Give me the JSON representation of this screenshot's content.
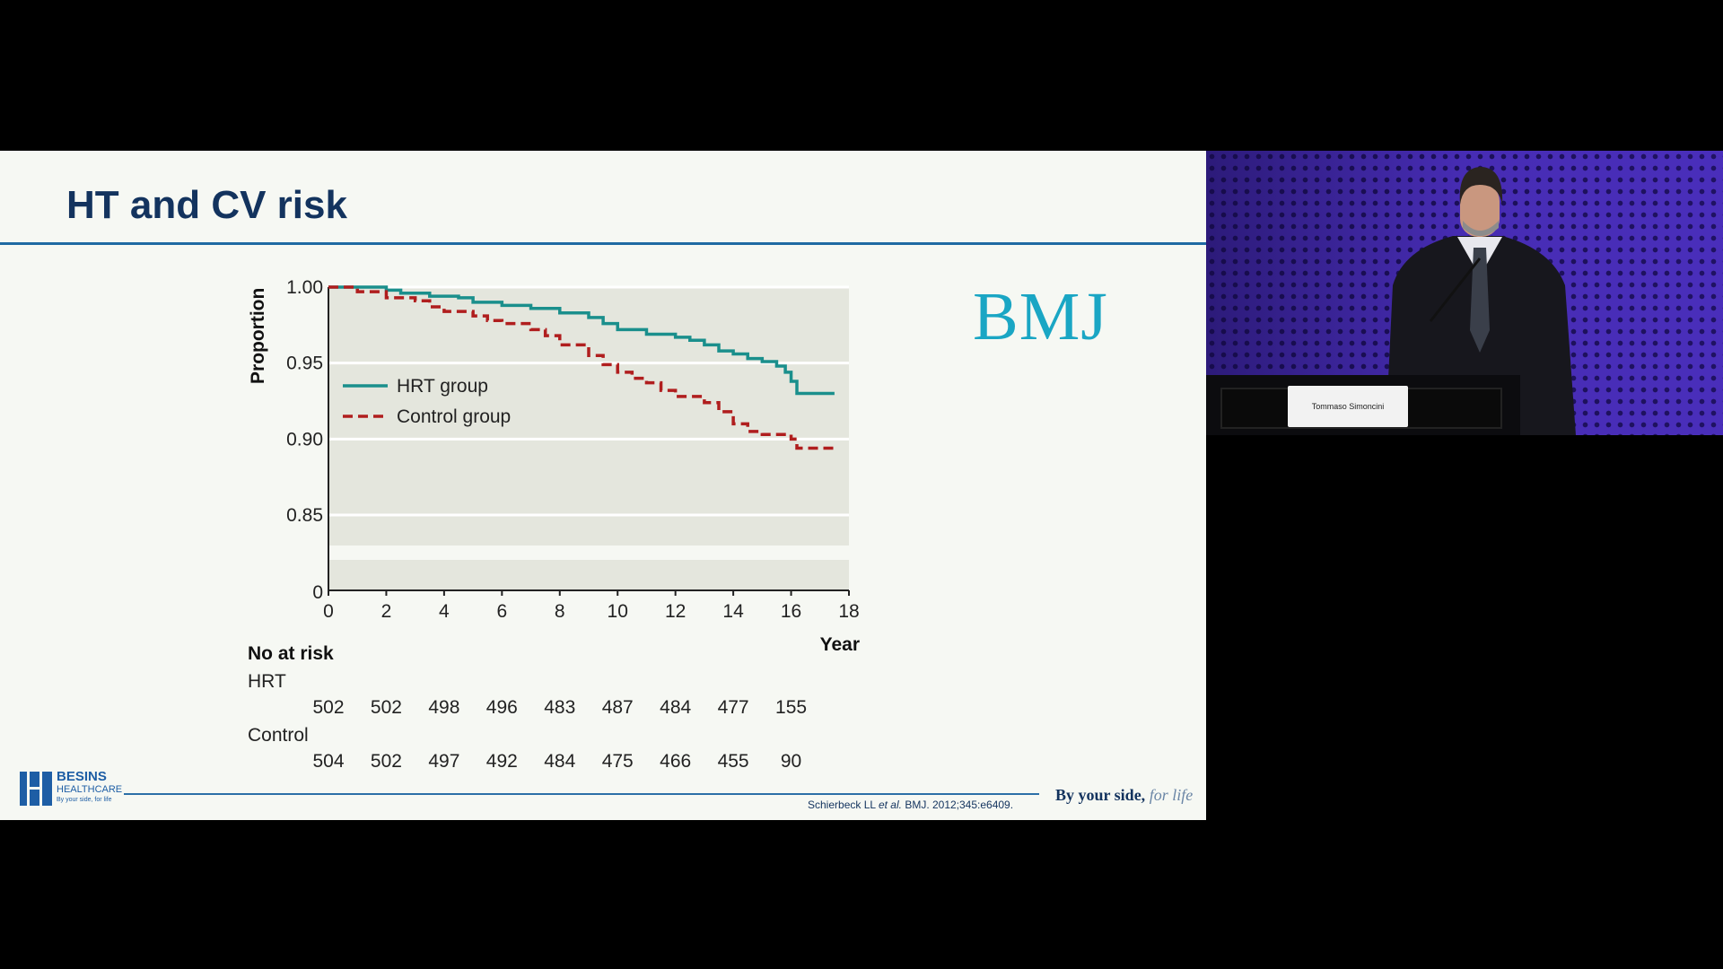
{
  "slide": {
    "title": "HT and CV risk",
    "bmj_logo": "BMJ",
    "footer": {
      "brand_name": "BESINS",
      "brand_sub": "HEALTHCARE",
      "brand_tag": "By your side, for life",
      "citation_authors": "Schierbeck LL",
      "citation_etal": "et al.",
      "citation_ref": "BMJ. 2012;345:e6409.",
      "tagline_main": "By your side,",
      "tagline_italic": "for life"
    },
    "risk_table": {
      "header": "No at risk",
      "rows": [
        {
          "label": "HRT",
          "values": [
            "502",
            "502",
            "498",
            "496",
            "483",
            "487",
            "484",
            "477",
            "155"
          ]
        },
        {
          "label": "Control",
          "values": [
            "504",
            "502",
            "497",
            "492",
            "484",
            "475",
            "466",
            "455",
            "90"
          ]
        }
      ]
    }
  },
  "chart_data": {
    "type": "line",
    "xlabel": "Year",
    "ylabel": "Proportion",
    "xlim": [
      0,
      18
    ],
    "xticks": [
      0,
      2,
      4,
      6,
      8,
      10,
      12,
      14,
      16,
      18
    ],
    "yticks": [
      "1.00",
      "0.95",
      "0.90",
      "0.85",
      "0"
    ],
    "ylim": [
      0.83,
      1.0
    ],
    "axis_break": true,
    "legend_position": "middle-left",
    "series": [
      {
        "name": "HRT group",
        "color": "#1a8f8c",
        "style": "solid",
        "points": [
          [
            0,
            1.0
          ],
          [
            1.0,
            1.0
          ],
          [
            2.0,
            0.998
          ],
          [
            2.5,
            0.996
          ],
          [
            3.5,
            0.994
          ],
          [
            4.5,
            0.993
          ],
          [
            5.0,
            0.99
          ],
          [
            6.0,
            0.988
          ],
          [
            7.0,
            0.986
          ],
          [
            8.0,
            0.983
          ],
          [
            9.0,
            0.98
          ],
          [
            9.5,
            0.976
          ],
          [
            10.0,
            0.972
          ],
          [
            11.0,
            0.969
          ],
          [
            12.0,
            0.967
          ],
          [
            12.5,
            0.965
          ],
          [
            13.0,
            0.962
          ],
          [
            13.5,
            0.958
          ],
          [
            14.0,
            0.956
          ],
          [
            14.5,
            0.953
          ],
          [
            15.0,
            0.951
          ],
          [
            15.5,
            0.948
          ],
          [
            15.8,
            0.944
          ],
          [
            16.0,
            0.938
          ],
          [
            16.2,
            0.93
          ],
          [
            17.0,
            0.93
          ],
          [
            17.5,
            0.93
          ]
        ]
      },
      {
        "name": "Control group",
        "color": "#b01e1e",
        "style": "dashed",
        "points": [
          [
            0,
            1.0
          ],
          [
            1.0,
            0.997
          ],
          [
            2.0,
            0.993
          ],
          [
            3.0,
            0.991
          ],
          [
            3.5,
            0.987
          ],
          [
            4.0,
            0.984
          ],
          [
            5.0,
            0.981
          ],
          [
            5.5,
            0.978
          ],
          [
            6.0,
            0.976
          ],
          [
            7.0,
            0.972
          ],
          [
            7.5,
            0.968
          ],
          [
            8.0,
            0.962
          ],
          [
            9.0,
            0.955
          ],
          [
            9.5,
            0.949
          ],
          [
            10.0,
            0.944
          ],
          [
            10.5,
            0.94
          ],
          [
            11.0,
            0.937
          ],
          [
            11.5,
            0.932
          ],
          [
            12.0,
            0.928
          ],
          [
            13.0,
            0.924
          ],
          [
            13.5,
            0.918
          ],
          [
            14.0,
            0.91
          ],
          [
            14.5,
            0.905
          ],
          [
            15.0,
            0.903
          ],
          [
            16.0,
            0.9
          ],
          [
            16.2,
            0.894
          ],
          [
            17.0,
            0.894
          ],
          [
            17.5,
            0.894
          ]
        ]
      }
    ]
  },
  "video": {
    "nameplate": "Tommaso Simoncini"
  }
}
